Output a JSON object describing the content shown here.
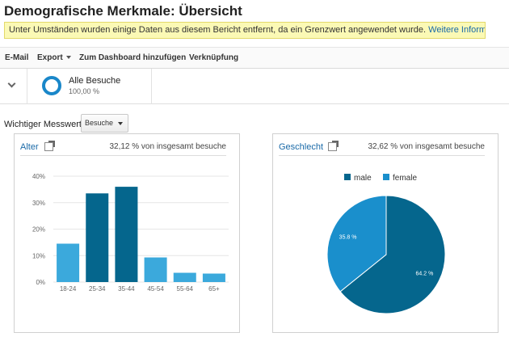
{
  "header": {
    "title": "Demografische Merkmale: Übersicht"
  },
  "notice": {
    "text": "Unter Umständen wurden einige Daten aus diesem Bericht entfernt, da ein Grenzwert angewendet wurde.",
    "link": "Weitere Informationen"
  },
  "toolbar": {
    "email": "E-Mail",
    "export": "Export",
    "dashboard": "Zum Dashboard hinzufügen",
    "link": "Verknüpfung"
  },
  "segment": {
    "name": "Alle Besuche",
    "percent": "100,00 %",
    "color": "#1a87c9"
  },
  "metric": {
    "label": "Wichtiger Messwert:",
    "selected": "Besuche"
  },
  "age_panel": {
    "title": "Alter",
    "stat": "32,12 % von insgesamt besuche",
    "icon": "external-link-icon"
  },
  "gender_panel": {
    "title": "Geschlecht",
    "stat": "32,62 % von insgesamt besuche",
    "icon": "external-link-icon"
  },
  "chart_data": [
    {
      "type": "bar",
      "categories": [
        "18-24",
        "25-34",
        "35-44",
        "45-54",
        "55-64",
        "65+"
      ],
      "values": [
        14.5,
        33.5,
        36,
        9.3,
        3.5,
        3.2
      ],
      "colors": [
        "#3ba9dc",
        "#05668d",
        "#05668d",
        "#3ba9dc",
        "#3ba9dc",
        "#3ba9dc"
      ],
      "ylim": [
        0,
        40
      ],
      "yticks": [
        "0%",
        "10%",
        "20%",
        "30%",
        "40%"
      ],
      "grid": true
    },
    {
      "type": "pie",
      "labels": [
        "male",
        "female"
      ],
      "values": [
        64.2,
        35.8
      ],
      "data_labels": [
        "64.2 %",
        "35.8 %"
      ],
      "colors": [
        "#05668d",
        "#1a8fcc"
      ],
      "legend": "top"
    }
  ]
}
